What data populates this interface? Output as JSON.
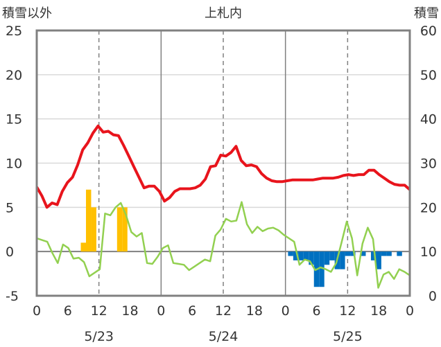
{
  "chart_data": {
    "type": "bar+line",
    "title": "上札内",
    "left_axis_label": "積雪以外",
    "right_axis_label": "積雪",
    "y_left": {
      "min": -5,
      "max": 25,
      "ticks": [
        -5,
        0,
        5,
        10,
        15,
        20,
        25
      ]
    },
    "y_right": {
      "min": 0,
      "max": 60,
      "ticks": [
        0,
        10,
        20,
        30,
        40,
        50,
        60
      ]
    },
    "x_hours": {
      "min": 0,
      "max": 72
    },
    "x_tick_labels": [
      "0",
      "6",
      "12",
      "18",
      "0",
      "6",
      "12",
      "18",
      "0",
      "6",
      "12",
      "18",
      "0"
    ],
    "date_labels": [
      "5/23",
      "5/24",
      "5/25"
    ],
    "grid": {
      "day_lines": "solid",
      "noon_lines": "dashed",
      "zero_line": true
    },
    "colors": {
      "red_line": "#e8141c",
      "green_line": "#92d050",
      "orange_bars": "#ffc000",
      "blue_bars": "#0070c0",
      "frame": "#808080"
    },
    "series": [
      {
        "style": "line",
        "axis": "left",
        "color": "#e8141c",
        "values": [
          7.3,
          6.3,
          5.0,
          5.5,
          5.3,
          6.8,
          7.8,
          8.4,
          9.8,
          11.5,
          12.3,
          13.4,
          14.2,
          13.5,
          13.6,
          13.2,
          13.1,
          12.0,
          10.8,
          9.6,
          8.4,
          7.2,
          7.4,
          7.4,
          6.8,
          5.7,
          6.1,
          6.8,
          7.1,
          7.1,
          7.1,
          7.2,
          7.5,
          8.2,
          9.6,
          9.7,
          10.9,
          10.8,
          11.2,
          11.9,
          10.3,
          9.7,
          9.8,
          9.6,
          8.8,
          8.3,
          8.0,
          7.9,
          7.9,
          8.0,
          8.1,
          8.1,
          8.1,
          8.1,
          8.1,
          8.2,
          8.3,
          8.3,
          8.3,
          8.4,
          8.6,
          8.7,
          8.6,
          8.7,
          8.7,
          9.2,
          9.2,
          8.7,
          8.3,
          7.9,
          7.6,
          7.5,
          7.5,
          7.0
        ]
      },
      {
        "style": "line",
        "axis": "left",
        "color": "#92d050",
        "values": [
          1.5,
          1.3,
          1.1,
          -0.2,
          -1.3,
          0.8,
          0.4,
          -0.8,
          -0.7,
          -1.2,
          -2.8,
          -2.4,
          -2.0,
          4.3,
          4.1,
          5.0,
          5.5,
          4.1,
          2.2,
          1.7,
          2.1,
          -1.3,
          -1.4,
          -0.6,
          0.4,
          0.7,
          -1.3,
          -1.4,
          -1.5,
          -2.1,
          -1.7,
          -1.3,
          -0.9,
          -1.1,
          1.8,
          2.5,
          3.7,
          3.4,
          3.5,
          5.6,
          3.1,
          2.1,
          2.8,
          2.3,
          2.6,
          2.7,
          2.4,
          1.9,
          1.5,
          1.1,
          -1.5,
          -0.9,
          -1.1,
          -2.1,
          -1.8,
          -2.0,
          -2.3,
          -1.3,
          1.0,
          3.4,
          1.5,
          -2.7,
          0.9,
          2.7,
          1.4,
          -4.1,
          -2.6,
          -2.3,
          -3.1,
          -2.0,
          -2.3,
          -2.7
        ]
      },
      {
        "style": "bar",
        "axis": "left",
        "color": "#ffc000",
        "bars": [
          {
            "hour": 9,
            "value": 1.0
          },
          {
            "hour": 10,
            "value": 7.0
          },
          {
            "hour": 11,
            "value": 5.0
          },
          {
            "hour": 16,
            "value": 5.0
          },
          {
            "hour": 17,
            "value": 5.0
          }
        ]
      },
      {
        "style": "bar",
        "axis": "left",
        "color": "#0070c0",
        "bars": [
          {
            "hour": 49,
            "value": -0.5
          },
          {
            "hour": 50,
            "value": -1.0
          },
          {
            "hour": 51,
            "value": -1.0
          },
          {
            "hour": 52,
            "value": -1.0
          },
          {
            "hour": 53,
            "value": -1.5
          },
          {
            "hour": 54,
            "value": -4.0
          },
          {
            "hour": 55,
            "value": -4.0
          },
          {
            "hour": 56,
            "value": -1.5
          },
          {
            "hour": 57,
            "value": -1.0
          },
          {
            "hour": 58,
            "value": -2.0
          },
          {
            "hour": 59,
            "value": -2.0
          },
          {
            "hour": 60,
            "value": -0.5
          },
          {
            "hour": 61,
            "value": -0.5
          },
          {
            "hour": 63,
            "value": -0.5
          },
          {
            "hour": 65,
            "value": -1.0
          },
          {
            "hour": 66,
            "value": -2.0
          },
          {
            "hour": 67,
            "value": -0.5
          },
          {
            "hour": 68,
            "value": -0.5
          },
          {
            "hour": 70,
            "value": -0.5
          }
        ]
      }
    ]
  }
}
